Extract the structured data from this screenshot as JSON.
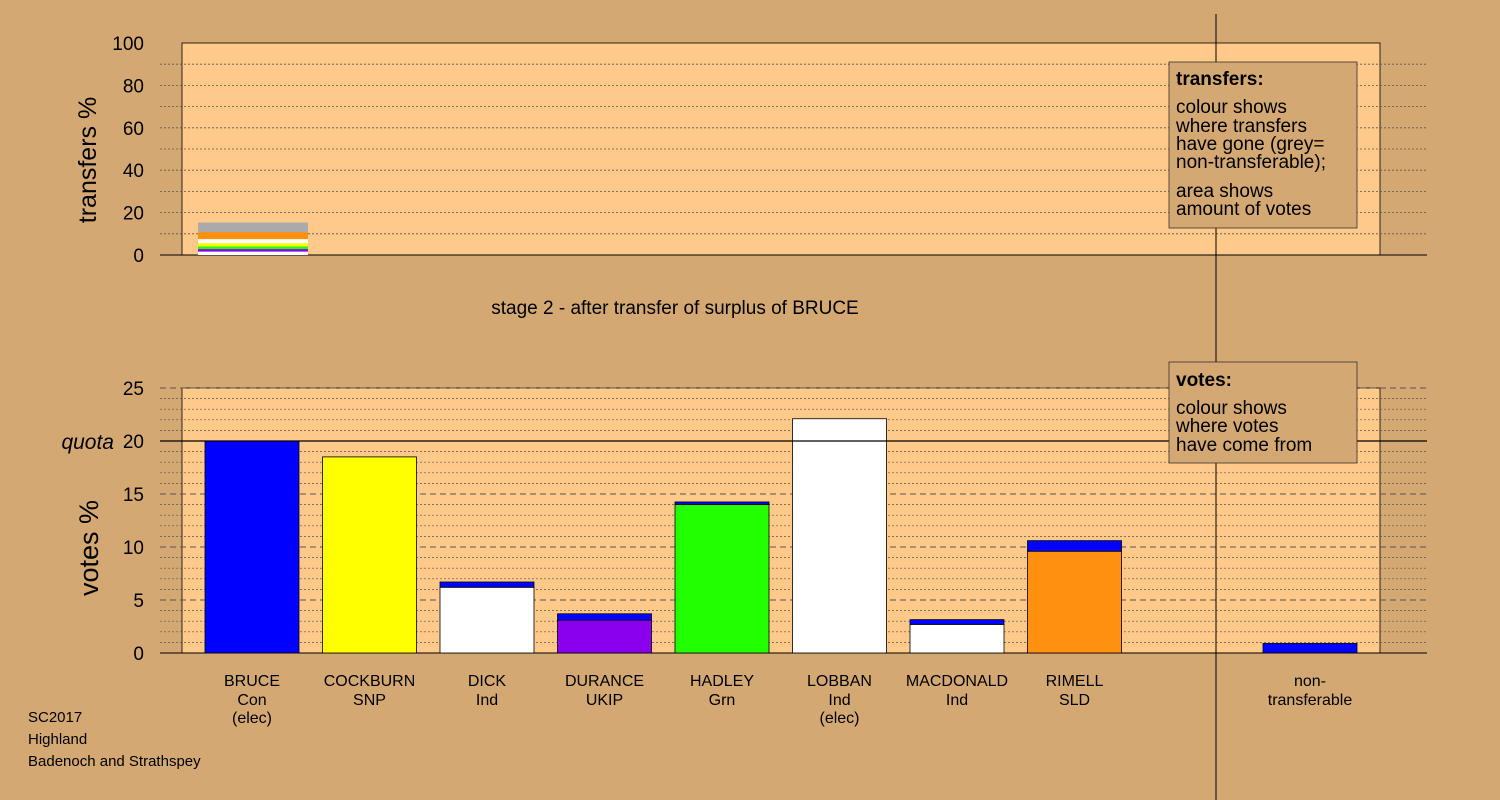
{
  "chart_data": {
    "type": "bar",
    "stage_title": "stage 2 - after transfer of surplus of BRUCE",
    "transfers_chart": {
      "ylabel": "transfers %",
      "ylim": [
        0,
        100
      ],
      "yticks": [
        "0",
        "20",
        "40",
        "60",
        "80",
        "100"
      ],
      "bar": {
        "from": "BRUCE",
        "segments": [
          {
            "to": "LOBBAN",
            "value": 1.6,
            "color": "#ffffff"
          },
          {
            "to": "DURANCE",
            "value": 1.2,
            "color": "#8800ee"
          },
          {
            "to": "HADLEY",
            "value": 1.3,
            "color": "#22ff00"
          },
          {
            "to": "COCKBURN",
            "value": 1.5,
            "color": "#ffff00"
          },
          {
            "to": "DICK",
            "value": 1.0,
            "color": "#ffffff"
          },
          {
            "to": "MACDONALD",
            "value": 0.9,
            "color": "#ffffff"
          },
          {
            "to": "RIMELL",
            "value": 3.3,
            "color": "#ff9010"
          },
          {
            "to": "non-transferable",
            "value": 4.5,
            "color": "#aaaaaa"
          }
        ]
      },
      "legend": {
        "title": "transfers:",
        "lines1": [
          "colour shows",
          "where transfers",
          "have gone (grey=",
          "non-transferable);"
        ],
        "lines2": [
          "area shows",
          "amount of votes"
        ]
      }
    },
    "votes_chart": {
      "ylabel": "votes %",
      "ylim": [
        0,
        25
      ],
      "yticks": [
        "0",
        "5",
        "10",
        "15",
        "20",
        "25"
      ],
      "quota": 20,
      "quota_label": "quota",
      "candidates": [
        {
          "name": "BRUCE",
          "party": "Con",
          "note": "(elec)",
          "base": 20.0,
          "transfer": 0,
          "color": "#0000ff"
        },
        {
          "name": "COCKBURN",
          "party": "SNP",
          "note": "",
          "base": 18.5,
          "transfer": 0.0,
          "color": "#ffff00"
        },
        {
          "name": "DICK",
          "party": "Ind",
          "note": "",
          "base": 6.2,
          "transfer": 0.5,
          "color": "#ffffff"
        },
        {
          "name": "DURANCE",
          "party": "UKIP",
          "note": "",
          "base": 3.1,
          "transfer": 0.6,
          "color": "#8800ee"
        },
        {
          "name": "HADLEY",
          "party": "Grn",
          "note": "",
          "base": 14.0,
          "transfer": 0.25,
          "color": "#22ff00"
        },
        {
          "name": "LOBBAN",
          "party": "Ind",
          "note": "(elec)",
          "base": 22.1,
          "transfer": 0.0,
          "color": "#ffffff"
        },
        {
          "name": "MACDONALD",
          "party": "Ind",
          "note": "",
          "base": 2.7,
          "transfer": 0.45,
          "color": "#ffffff"
        },
        {
          "name": "RIMELL",
          "party": "SLD",
          "note": "",
          "base": 9.6,
          "transfer": 1.0,
          "color": "#ff9010"
        }
      ],
      "nontransferable": {
        "label1": "non-",
        "label2": "transferable",
        "value": 0.9
      },
      "transfer_color": "#0000ff",
      "legend": {
        "title": "votes:",
        "lines": [
          "colour shows",
          "where votes",
          "have come from"
        ]
      }
    }
  },
  "footer": {
    "line1": "SC2017",
    "line2": "Highland",
    "line3": "Badenoch and Strathspey"
  },
  "colors": {
    "background": "#d4a873",
    "plot_background": "#ffc98a"
  }
}
